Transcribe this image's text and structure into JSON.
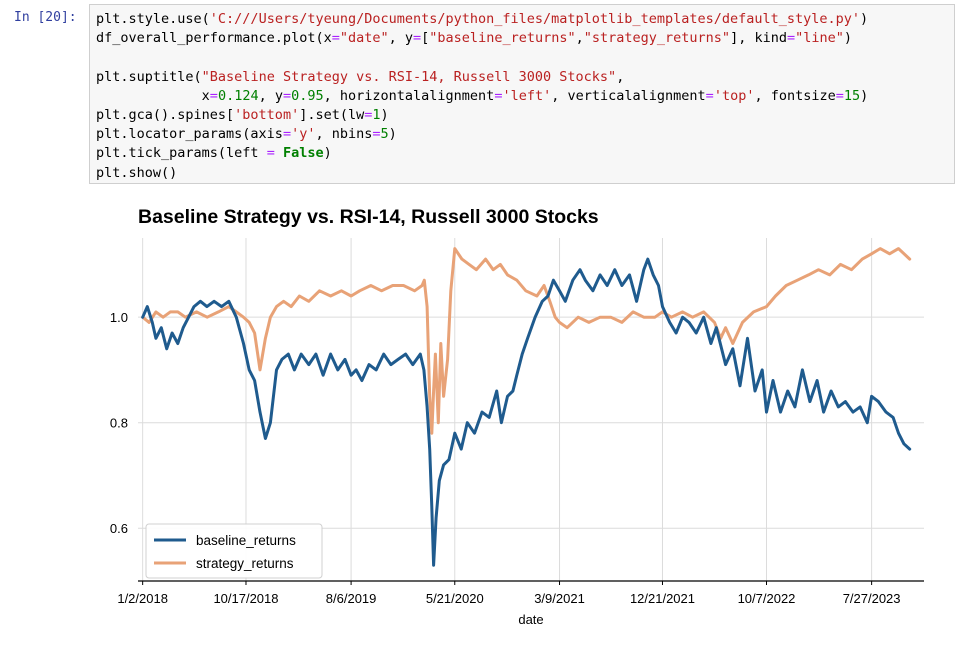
{
  "cell": {
    "prompt": "In [20]:",
    "code": [
      [
        [
          "plt.style.use(",
          ""
        ],
        [
          "'C:///Users/tyeung/Documents/python_files/matplotlib_templates/default_style.py'",
          "str"
        ],
        [
          ")",
          ""
        ]
      ],
      [
        [
          "df_overall_performance.plot(x",
          ""
        ],
        [
          "=",
          "eq"
        ],
        [
          "\"date\"",
          "str"
        ],
        [
          ", y",
          ""
        ],
        [
          "=",
          "eq"
        ],
        [
          "[",
          ""
        ],
        [
          "\"baseline_returns\"",
          "str"
        ],
        [
          ",",
          ""
        ],
        [
          "\"strategy_returns\"",
          "str"
        ],
        [
          "], kind",
          ""
        ],
        [
          "=",
          "eq"
        ],
        [
          "\"line\"",
          "str"
        ],
        [
          ")",
          ""
        ]
      ],
      [],
      [
        [
          "plt.suptitle(",
          ""
        ],
        [
          "\"Baseline Strategy vs. RSI-14, Russell 3000 Stocks\"",
          "str"
        ],
        [
          ",",
          ""
        ]
      ],
      [
        [
          "             x",
          ""
        ],
        [
          "=",
          "eq"
        ],
        [
          "0.124",
          "num"
        ],
        [
          ", y",
          ""
        ],
        [
          "=",
          "eq"
        ],
        [
          "0.95",
          "num"
        ],
        [
          ", horizontalalignment",
          ""
        ],
        [
          "=",
          "eq"
        ],
        [
          "'left'",
          "str"
        ],
        [
          ", verticalalignment",
          ""
        ],
        [
          "=",
          "eq"
        ],
        [
          "'top'",
          "str"
        ],
        [
          ", fontsize",
          ""
        ],
        [
          "=",
          "eq"
        ],
        [
          "15",
          "num"
        ],
        [
          ")",
          ""
        ]
      ],
      [
        [
          "plt.gca().spines[",
          ""
        ],
        [
          "'bottom'",
          "str"
        ],
        [
          "].set(lw",
          ""
        ],
        [
          "=",
          "eq"
        ],
        [
          "1",
          "num"
        ],
        [
          ")",
          ""
        ]
      ],
      [
        [
          "plt.locator_params(axis",
          ""
        ],
        [
          "=",
          "eq"
        ],
        [
          "'y'",
          "str"
        ],
        [
          ", nbins",
          ""
        ],
        [
          "=",
          "eq"
        ],
        [
          "5",
          "num"
        ],
        [
          ")",
          ""
        ]
      ],
      [
        [
          "plt.tick_params(left ",
          ""
        ],
        [
          "=",
          "eq"
        ],
        [
          " ",
          ""
        ],
        [
          "False",
          "kw"
        ],
        [
          ")",
          ""
        ]
      ],
      [
        [
          "plt.show()",
          ""
        ]
      ]
    ]
  },
  "chart_data": {
    "type": "line",
    "title": "Baseline Strategy vs. RSI-14, Russell 3000 Stocks",
    "xlabel": "date",
    "ylabel": "",
    "x_ticks": [
      "1/2/2018",
      "10/17/2018",
      "8/6/2019",
      "5/21/2020",
      "3/9/2021",
      "12/21/2021",
      "10/7/2022",
      "7/27/2023"
    ],
    "y_ticks": [
      "0.6",
      "0.8",
      "1.0"
    ],
    "y_tick_values": [
      0.6,
      0.8,
      1.0
    ],
    "xlim": [
      "2017-12-20",
      "2023-12-20"
    ],
    "ylim": [
      0.5,
      1.15
    ],
    "grid": true,
    "legend_position": "lower-left",
    "series": [
      {
        "name": "baseline_returns",
        "color": "#1f5b8e",
        "x": [
          "2018-01-02",
          "2018-01-15",
          "2018-01-29",
          "2018-02-08",
          "2018-02-23",
          "2018-03-10",
          "2018-03-25",
          "2018-04-10",
          "2018-04-25",
          "2018-05-10",
          "2018-05-25",
          "2018-06-12",
          "2018-06-30",
          "2018-07-20",
          "2018-08-10",
          "2018-08-30",
          "2018-09-20",
          "2018-10-10",
          "2018-10-26",
          "2018-11-10",
          "2018-11-25",
          "2018-12-10",
          "2018-12-24",
          "2019-01-10",
          "2019-01-25",
          "2019-02-12",
          "2019-03-01",
          "2019-03-20",
          "2019-04-10",
          "2019-04-30",
          "2019-05-20",
          "2019-06-10",
          "2019-06-30",
          "2019-07-20",
          "2019-08-06",
          "2019-08-20",
          "2019-09-05",
          "2019-09-25",
          "2019-10-15",
          "2019-11-05",
          "2019-11-25",
          "2019-12-15",
          "2020-01-05",
          "2020-01-25",
          "2020-02-15",
          "2020-02-25",
          "2020-03-05",
          "2020-03-12",
          "2020-03-18",
          "2020-03-23",
          "2020-03-30",
          "2020-04-08",
          "2020-04-20",
          "2020-05-05",
          "2020-05-21",
          "2020-06-08",
          "2020-06-25",
          "2020-07-15",
          "2020-08-05",
          "2020-08-25",
          "2020-09-15",
          "2020-09-28",
          "2020-10-15",
          "2020-10-30",
          "2020-11-10",
          "2020-11-25",
          "2020-12-10",
          "2020-12-31",
          "2021-01-20",
          "2021-02-05",
          "2021-02-20",
          "2021-03-09",
          "2021-03-25",
          "2021-04-15",
          "2021-05-05",
          "2021-05-20",
          "2021-06-10",
          "2021-06-30",
          "2021-07-20",
          "2021-08-10",
          "2021-08-30",
          "2021-09-20",
          "2021-10-10",
          "2021-10-30",
          "2021-11-10",
          "2021-11-25",
          "2021-12-10",
          "2021-12-21",
          "2022-01-10",
          "2022-01-28",
          "2022-02-15",
          "2022-03-05",
          "2022-03-25",
          "2022-04-15",
          "2022-05-05",
          "2022-05-20",
          "2022-06-15",
          "2022-07-05",
          "2022-07-25",
          "2022-08-15",
          "2022-09-05",
          "2022-09-25",
          "2022-10-07",
          "2022-10-25",
          "2022-11-15",
          "2022-12-05",
          "2022-12-25",
          "2023-01-15",
          "2023-02-05",
          "2023-02-25",
          "2023-03-15",
          "2023-04-05",
          "2023-04-25",
          "2023-05-15",
          "2023-06-05",
          "2023-06-25",
          "2023-07-15",
          "2023-07-27",
          "2023-08-15",
          "2023-09-05",
          "2023-09-25",
          "2023-10-10",
          "2023-10-25",
          "2023-11-10"
        ],
        "values": [
          1.0,
          1.02,
          0.99,
          0.96,
          0.98,
          0.94,
          0.97,
          0.95,
          0.98,
          1.0,
          1.02,
          1.03,
          1.02,
          1.03,
          1.02,
          1.03,
          1.0,
          0.95,
          0.9,
          0.88,
          0.82,
          0.77,
          0.8,
          0.9,
          0.92,
          0.93,
          0.9,
          0.93,
          0.91,
          0.93,
          0.89,
          0.93,
          0.9,
          0.92,
          0.89,
          0.9,
          0.88,
          0.91,
          0.9,
          0.93,
          0.91,
          0.92,
          0.93,
          0.91,
          0.93,
          0.9,
          0.83,
          0.75,
          0.64,
          0.53,
          0.62,
          0.69,
          0.72,
          0.73,
          0.78,
          0.75,
          0.8,
          0.78,
          0.82,
          0.81,
          0.86,
          0.8,
          0.85,
          0.86,
          0.89,
          0.93,
          0.96,
          1.0,
          1.03,
          1.04,
          1.07,
          1.05,
          1.03,
          1.07,
          1.09,
          1.07,
          1.05,
          1.08,
          1.06,
          1.09,
          1.06,
          1.08,
          1.03,
          1.09,
          1.11,
          1.08,
          1.06,
          1.02,
          0.99,
          0.97,
          1.0,
          0.99,
          0.97,
          1.0,
          0.95,
          0.98,
          0.91,
          0.94,
          0.87,
          0.96,
          0.86,
          0.9,
          0.82,
          0.88,
          0.82,
          0.86,
          0.83,
          0.9,
          0.84,
          0.88,
          0.82,
          0.86,
          0.83,
          0.84,
          0.82,
          0.83,
          0.8,
          0.85,
          0.84,
          0.82,
          0.81,
          0.78,
          0.76,
          0.75
        ]
      },
      {
        "name": "strategy_returns",
        "color": "#e8a277",
        "x": [
          "2018-01-02",
          "2018-01-20",
          "2018-02-08",
          "2018-02-28",
          "2018-03-20",
          "2018-04-10",
          "2018-05-01",
          "2018-06-01",
          "2018-07-01",
          "2018-08-01",
          "2018-08-30",
          "2018-09-20",
          "2018-10-10",
          "2018-10-26",
          "2018-11-10",
          "2018-11-25",
          "2018-12-10",
          "2018-12-24",
          "2019-01-10",
          "2019-01-30",
          "2019-02-20",
          "2019-03-15",
          "2019-04-10",
          "2019-05-10",
          "2019-06-10",
          "2019-07-10",
          "2019-08-06",
          "2019-08-30",
          "2019-09-30",
          "2019-10-30",
          "2019-11-30",
          "2019-12-30",
          "2020-01-30",
          "2020-02-20",
          "2020-02-26",
          "2020-03-05",
          "2020-03-12",
          "2020-03-18",
          "2020-03-23",
          "2020-03-28",
          "2020-04-05",
          "2020-04-12",
          "2020-04-20",
          "2020-05-01",
          "2020-05-10",
          "2020-05-21",
          "2020-06-10",
          "2020-06-30",
          "2020-07-20",
          "2020-08-15",
          "2020-09-05",
          "2020-09-25",
          "2020-10-15",
          "2020-11-10",
          "2020-12-05",
          "2021-01-05",
          "2021-01-25",
          "2021-02-10",
          "2021-02-25",
          "2021-03-09",
          "2021-03-30",
          "2021-04-30",
          "2021-05-30",
          "2021-06-30",
          "2021-07-30",
          "2021-08-30",
          "2021-09-30",
          "2021-10-30",
          "2021-11-30",
          "2021-12-21",
          "2022-01-15",
          "2022-02-15",
          "2022-03-15",
          "2022-04-15",
          "2022-05-15",
          "2022-06-01",
          "2022-06-15",
          "2022-07-05",
          "2022-08-01",
          "2022-09-01",
          "2022-10-07",
          "2022-11-01",
          "2022-12-01",
          "2023-01-01",
          "2023-02-01",
          "2023-03-01",
          "2023-04-01",
          "2023-05-01",
          "2023-06-01",
          "2023-07-01",
          "2023-07-27",
          "2023-08-20",
          "2023-09-15",
          "2023-10-10",
          "2023-11-10"
        ],
        "values": [
          1.0,
          0.99,
          1.01,
          1.0,
          1.01,
          1.01,
          1.0,
          1.01,
          1.0,
          1.01,
          1.02,
          1.01,
          1.0,
          0.99,
          0.97,
          0.9,
          0.96,
          1.0,
          1.02,
          1.03,
          1.02,
          1.04,
          1.03,
          1.05,
          1.04,
          1.05,
          1.04,
          1.05,
          1.06,
          1.05,
          1.06,
          1.06,
          1.05,
          1.06,
          1.07,
          1.02,
          0.85,
          0.78,
          0.86,
          0.93,
          0.8,
          0.95,
          0.85,
          0.92,
          1.05,
          1.13,
          1.11,
          1.1,
          1.09,
          1.11,
          1.09,
          1.1,
          1.08,
          1.07,
          1.05,
          1.04,
          1.06,
          1.03,
          1.0,
          0.99,
          0.98,
          1.0,
          0.99,
          1.0,
          1.0,
          0.99,
          1.01,
          1.0,
          1.0,
          1.01,
          1.0,
          1.01,
          1.0,
          1.01,
          0.99,
          0.96,
          0.98,
          0.95,
          0.99,
          1.01,
          1.02,
          1.04,
          1.06,
          1.07,
          1.08,
          1.09,
          1.08,
          1.1,
          1.09,
          1.11,
          1.12,
          1.13,
          1.12,
          1.13,
          1.11
        ]
      }
    ]
  }
}
